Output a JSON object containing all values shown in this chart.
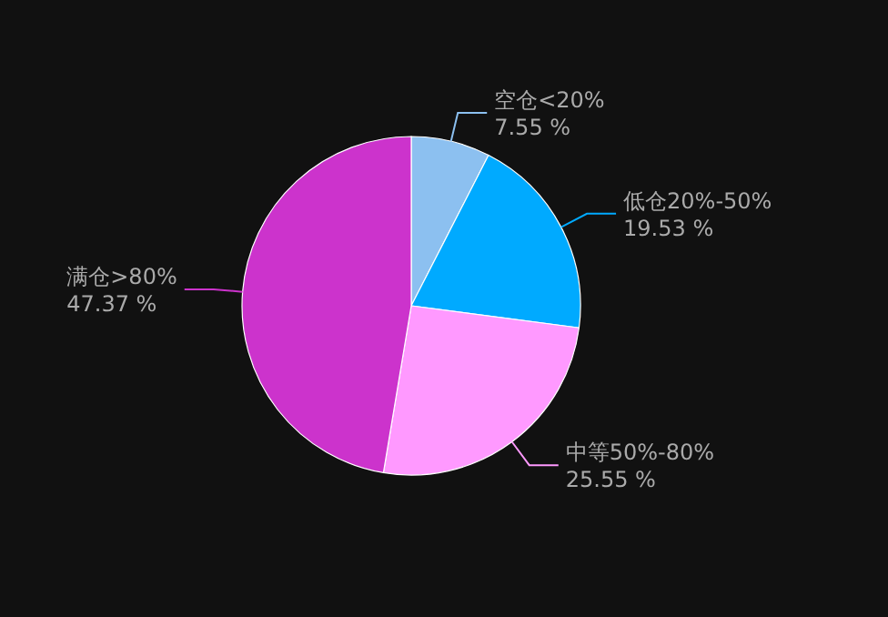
{
  "chart_data": {
    "type": "pie",
    "categories": [
      "空仓<20%",
      "低仓20%-50%",
      "中等50%-80%",
      "满仓>80%"
    ],
    "values": [
      7.55,
      19.53,
      25.55,
      47.37
    ],
    "value_labels": [
      "7.55 %",
      "19.53 %",
      "25.55 %",
      "47.37 %"
    ],
    "colors": [
      "#8cc0f0",
      "#00aaff",
      "#ff99ff",
      "#cc33cc"
    ]
  }
}
